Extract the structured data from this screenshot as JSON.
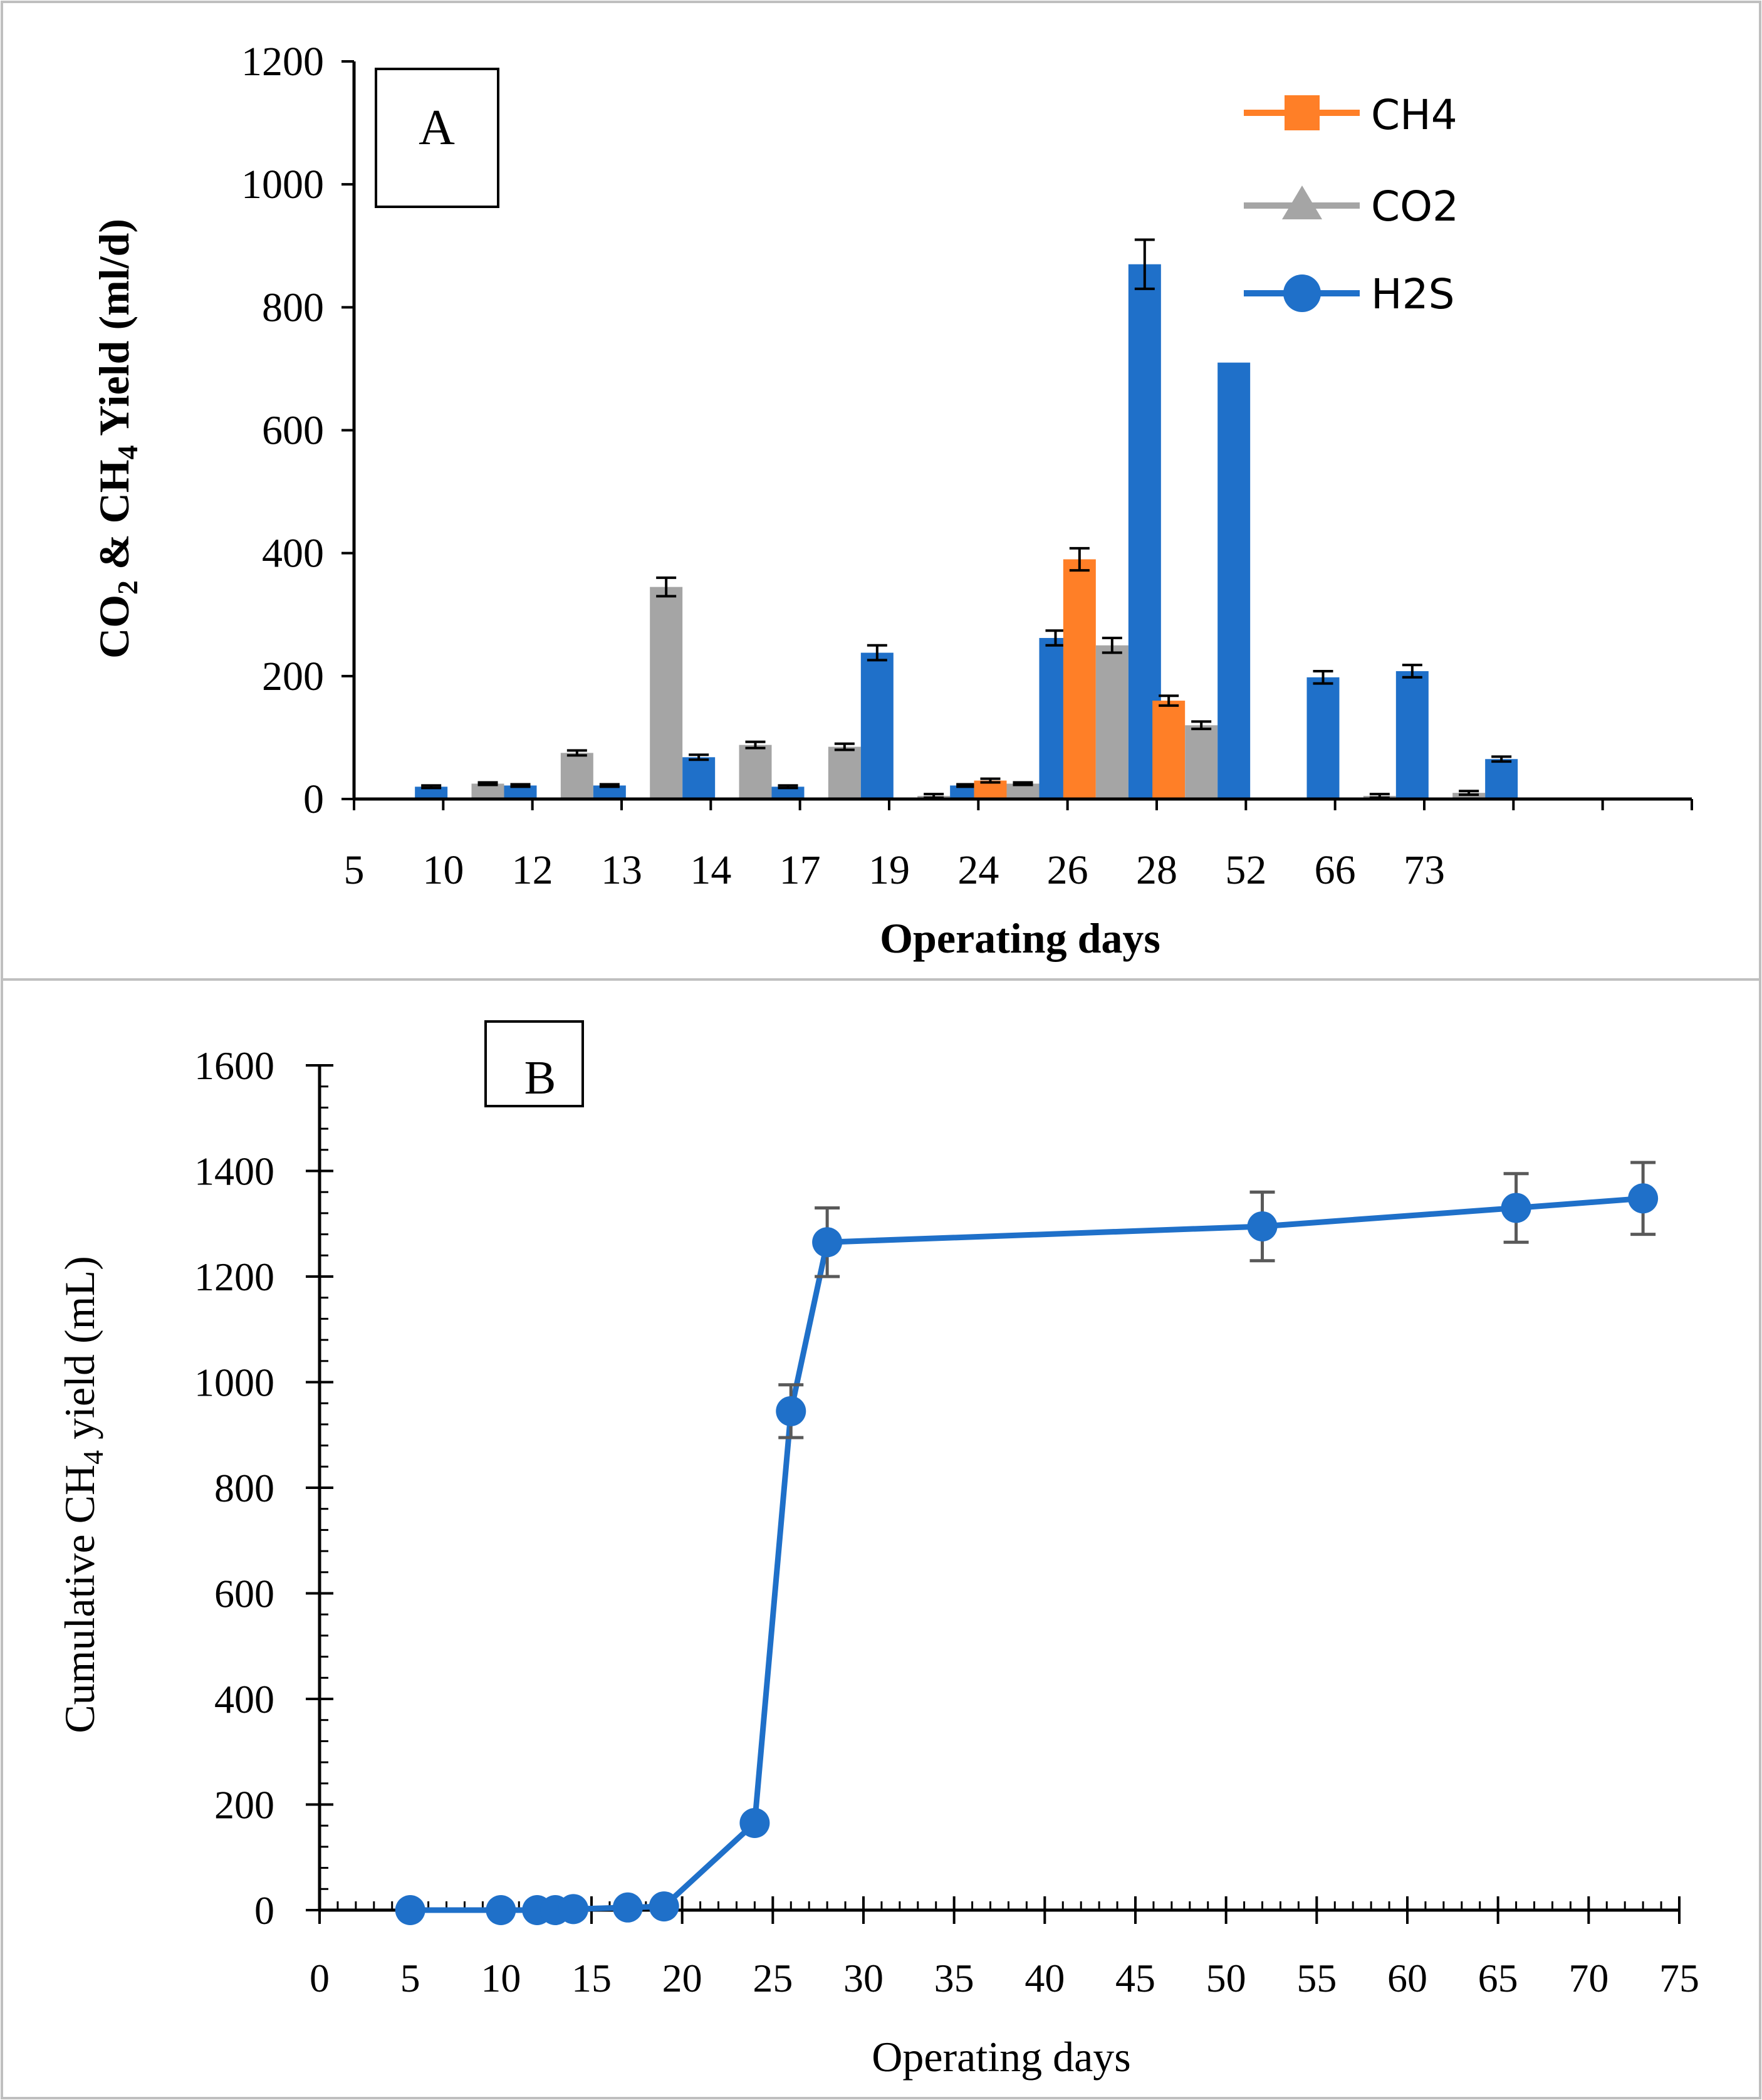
{
  "chart_data": [
    {
      "type": "bar",
      "panel_label": "A",
      "title": "",
      "xlabel": "Operating days",
      "ylabel": {
        "p1": "CO",
        "s1": "2",
        "p2": " & CH",
        "s2": "4",
        "p3": " Yield (ml/d)"
      },
      "ylim": [
        0,
        1200
      ],
      "yticks": [
        "0",
        "200",
        "400",
        "600",
        "800",
        "1000",
        "1200"
      ],
      "categories": [
        "5",
        "10",
        "12",
        "13",
        "14",
        "17",
        "19",
        "24",
        "26",
        "28",
        "52",
        "66",
        "73"
      ],
      "legend_position": "top-right",
      "series": [
        {
          "name": "CH4",
          "color": "#FF7F27",
          "marker": "square",
          "values": [
            0,
            0,
            0,
            0,
            0,
            0,
            0,
            30,
            390,
            160,
            0,
            0,
            0
          ],
          "errors": [
            0,
            0,
            0,
            0,
            0,
            0,
            0,
            3,
            18,
            8,
            0,
            0,
            0
          ]
        },
        {
          "name": "CO2",
          "color": "#A5A5A5",
          "marker": "triangle",
          "values": [
            0,
            25,
            75,
            345,
            88,
            85,
            5,
            25,
            250,
            120,
            0,
            5,
            10
          ],
          "errors": [
            0,
            2,
            4,
            15,
            5,
            5,
            3,
            2,
            12,
            6,
            0,
            3,
            3
          ]
        },
        {
          "name": "H2S",
          "color": "#1F70C9",
          "marker": "circle",
          "values": [
            20,
            22,
            22,
            68,
            20,
            238,
            22,
            262,
            870,
            710,
            198,
            208,
            65
          ],
          "errors": [
            2,
            2,
            2,
            4,
            2,
            12,
            2,
            12,
            40,
            0,
            10,
            10,
            4
          ]
        }
      ]
    },
    {
      "type": "line",
      "panel_label": "B",
      "title": "",
      "xlabel": "Operating days",
      "ylabel": {
        "p1": "Cumulative CH",
        "s1": "4",
        "p2": " yield (mL)"
      },
      "xlim": [
        0,
        75
      ],
      "ylim": [
        0,
        1600
      ],
      "xticks": [
        "0",
        "5",
        "10",
        "15",
        "20",
        "25",
        "30",
        "35",
        "40",
        "45",
        "50",
        "55",
        "60",
        "65",
        "70",
        "75"
      ],
      "yticks": [
        "0",
        "200",
        "400",
        "600",
        "800",
        "1000",
        "1200",
        "1400",
        "1600"
      ],
      "series": [
        {
          "name": "Cumulative CH4",
          "color": "#1F70C9",
          "x": [
            5,
            10,
            12,
            13,
            14,
            17,
            19,
            24,
            26,
            28,
            52,
            66,
            73
          ],
          "y": [
            0,
            0,
            0,
            0,
            2,
            5,
            7,
            165,
            945,
            1265,
            1295,
            1330,
            1348
          ],
          "errors": [
            0,
            0,
            0,
            0,
            0,
            0,
            0,
            0,
            50,
            65,
            65,
            65,
            68
          ]
        }
      ]
    }
  ]
}
